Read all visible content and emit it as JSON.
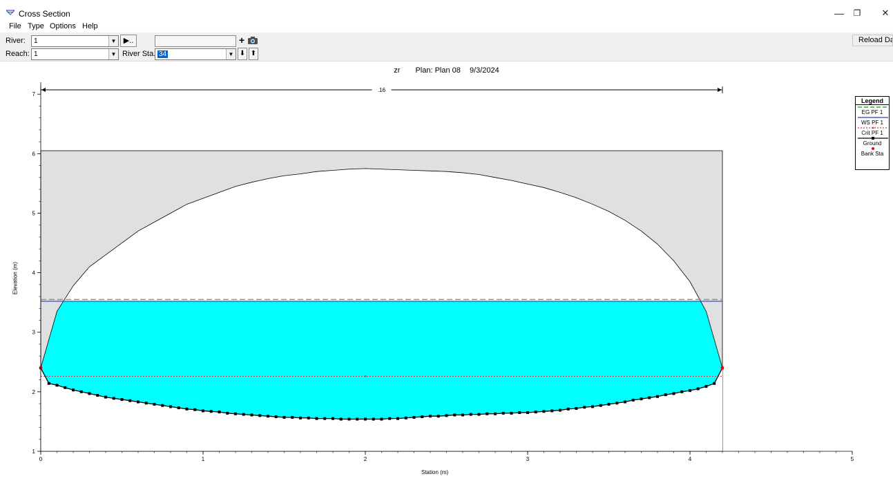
{
  "window": {
    "title": "Cross Section",
    "minimize_glyph": "—",
    "maximize_glyph": "❐",
    "close_glyph": "✕"
  },
  "menu": [
    "File",
    "Type",
    "Options",
    "Help"
  ],
  "toolbar": {
    "river_label": "River:",
    "river_value": "1",
    "reach_label": "Reach:",
    "reach_value": "1",
    "river_sta_label": "River Sta.:",
    "river_sta_value": "34",
    "play_button_glyph": "▶..",
    "add_plus_glyph": "+",
    "down_glyph": "⬇",
    "up_glyph": "⬆",
    "reload_label": "Reload Data"
  },
  "plot_header": {
    "project": "zr",
    "plan": "Plan: Plan 08",
    "date": "9/3/2024"
  },
  "colors": {
    "water": "#00ffff",
    "deck": "#e0e0e0",
    "ws_line": "#2040c0",
    "eg_line": "#909090",
    "crit_line": "#d04040",
    "bank_sta": "#ff0000",
    "ground": "#000000"
  },
  "chart_data": {
    "type": "line",
    "xlabel": "Station (m)",
    "ylabel": "Elevation (m)",
    "xlim": [
      0,
      5
    ],
    "ylim": [
      1,
      7.2
    ],
    "x_ticks": [
      0,
      1,
      2,
      3,
      4,
      5
    ],
    "y_ticks": [
      1,
      2,
      3,
      4,
      5,
      6,
      7
    ],
    "manning_n_label": ".16",
    "manning_extent": [
      0,
      4.2
    ],
    "legend": {
      "title": "Legend",
      "entries": [
        "EG PF 1",
        "WS PF 1",
        "Crit PF 1",
        "Ground",
        "Bank Sta"
      ]
    },
    "ws_elevation": 3.52,
    "eg_elevation": 3.55,
    "crit_elevation": 2.26,
    "deck": {
      "x_left": 0,
      "x_right": 4.2,
      "top": 6.05
    },
    "bank_stations": [
      [
        0,
        2.4
      ],
      [
        4.2,
        2.4
      ]
    ],
    "ground": [
      [
        0,
        2.4
      ],
      [
        0.05,
        2.14
      ],
      [
        0.1,
        2.11
      ],
      [
        0.15,
        2.07
      ],
      [
        0.2,
        2.03
      ],
      [
        0.25,
        2.0
      ],
      [
        0.3,
        1.97
      ],
      [
        0.35,
        1.94
      ],
      [
        0.4,
        1.91
      ],
      [
        0.45,
        1.89
      ],
      [
        0.5,
        1.87
      ],
      [
        0.55,
        1.85
      ],
      [
        0.6,
        1.83
      ],
      [
        0.65,
        1.81
      ],
      [
        0.7,
        1.79
      ],
      [
        0.75,
        1.77
      ],
      [
        0.8,
        1.75
      ],
      [
        0.85,
        1.73
      ],
      [
        0.9,
        1.71
      ],
      [
        0.95,
        1.7
      ],
      [
        1.0,
        1.68
      ],
      [
        1.05,
        1.67
      ],
      [
        1.1,
        1.66
      ],
      [
        1.15,
        1.64
      ],
      [
        1.2,
        1.63
      ],
      [
        1.25,
        1.62
      ],
      [
        1.3,
        1.61
      ],
      [
        1.35,
        1.6
      ],
      [
        1.4,
        1.59
      ],
      [
        1.45,
        1.58
      ],
      [
        1.5,
        1.57
      ],
      [
        1.55,
        1.57
      ],
      [
        1.6,
        1.56
      ],
      [
        1.65,
        1.56
      ],
      [
        1.7,
        1.55
      ],
      [
        1.75,
        1.55
      ],
      [
        1.8,
        1.55
      ],
      [
        1.85,
        1.54
      ],
      [
        1.9,
        1.54
      ],
      [
        1.95,
        1.54
      ],
      [
        2.0,
        1.54
      ],
      [
        2.05,
        1.54
      ],
      [
        2.1,
        1.54
      ],
      [
        2.15,
        1.55
      ],
      [
        2.2,
        1.55
      ],
      [
        2.25,
        1.56
      ],
      [
        2.3,
        1.57
      ],
      [
        2.35,
        1.58
      ],
      [
        2.4,
        1.59
      ],
      [
        2.45,
        1.59
      ],
      [
        2.5,
        1.6
      ],
      [
        2.55,
        1.61
      ],
      [
        2.6,
        1.61
      ],
      [
        2.65,
        1.62
      ],
      [
        2.7,
        1.62
      ],
      [
        2.75,
        1.63
      ],
      [
        2.8,
        1.63
      ],
      [
        2.85,
        1.64
      ],
      [
        2.9,
        1.64
      ],
      [
        2.95,
        1.65
      ],
      [
        3.0,
        1.65
      ],
      [
        3.05,
        1.66
      ],
      [
        3.1,
        1.67
      ],
      [
        3.15,
        1.68
      ],
      [
        3.2,
        1.69
      ],
      [
        3.25,
        1.71
      ],
      [
        3.3,
        1.72
      ],
      [
        3.35,
        1.74
      ],
      [
        3.4,
        1.75
      ],
      [
        3.45,
        1.77
      ],
      [
        3.5,
        1.79
      ],
      [
        3.55,
        1.81
      ],
      [
        3.6,
        1.83
      ],
      [
        3.65,
        1.86
      ],
      [
        3.7,
        1.88
      ],
      [
        3.75,
        1.9
      ],
      [
        3.8,
        1.92
      ],
      [
        3.85,
        1.95
      ],
      [
        3.9,
        1.97
      ],
      [
        3.95,
        2.0
      ],
      [
        4.0,
        2.02
      ],
      [
        4.05,
        2.05
      ],
      [
        4.1,
        2.09
      ],
      [
        4.15,
        2.14
      ],
      [
        4.2,
        2.4
      ]
    ],
    "culvert_top": [
      [
        0,
        2.4
      ],
      [
        0.1,
        3.35
      ],
      [
        0.2,
        3.78
      ],
      [
        0.3,
        4.1
      ],
      [
        0.4,
        4.3
      ],
      [
        0.5,
        4.5
      ],
      [
        0.6,
        4.7
      ],
      [
        0.7,
        4.85
      ],
      [
        0.8,
        5.0
      ],
      [
        0.9,
        5.15
      ],
      [
        1.0,
        5.25
      ],
      [
        1.1,
        5.35
      ],
      [
        1.2,
        5.45
      ],
      [
        1.3,
        5.52
      ],
      [
        1.4,
        5.58
      ],
      [
        1.5,
        5.63
      ],
      [
        1.6,
        5.66
      ],
      [
        1.7,
        5.7
      ],
      [
        1.8,
        5.72
      ],
      [
        1.9,
        5.74
      ],
      [
        2.0,
        5.75
      ],
      [
        2.1,
        5.74
      ],
      [
        2.2,
        5.73
      ],
      [
        2.3,
        5.72
      ],
      [
        2.4,
        5.71
      ],
      [
        2.5,
        5.7
      ],
      [
        2.6,
        5.68
      ],
      [
        2.7,
        5.65
      ],
      [
        2.8,
        5.6
      ],
      [
        2.9,
        5.55
      ],
      [
        3.0,
        5.49
      ],
      [
        3.1,
        5.43
      ],
      [
        3.2,
        5.35
      ],
      [
        3.3,
        5.26
      ],
      [
        3.4,
        5.15
      ],
      [
        3.5,
        5.03
      ],
      [
        3.6,
        4.88
      ],
      [
        3.7,
        4.7
      ],
      [
        3.8,
        4.48
      ],
      [
        3.9,
        4.2
      ],
      [
        4.0,
        3.85
      ],
      [
        4.1,
        3.35
      ],
      [
        4.2,
        2.4
      ]
    ]
  }
}
